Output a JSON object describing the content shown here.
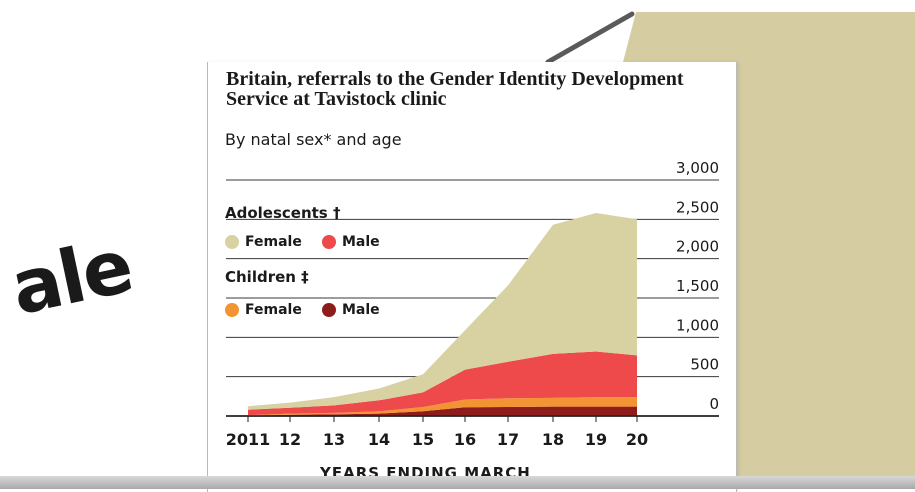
{
  "background_text": "ale",
  "chart_data": {
    "type": "area",
    "stacked": true,
    "title": "Britain, referrals to the Gender Identity Development Service at Tavistock clinic",
    "subtitle": "By natal sex* and age",
    "xlabel": "YEARS ENDING MARCH",
    "x": [
      "2011",
      "12",
      "13",
      "14",
      "15",
      "16",
      "17",
      "18",
      "19",
      "20"
    ],
    "ylim": [
      0,
      3000
    ],
    "yticks": [
      "3,000",
      "2,500",
      "2,000",
      "1,500",
      "1,000",
      "500",
      "0"
    ],
    "ytick_values": [
      3000,
      2500,
      2000,
      1500,
      1000,
      500,
      0
    ],
    "grid": true,
    "legend": {
      "groups": [
        {
          "title": "Adolescents †",
          "items": [
            "Female",
            "Male"
          ]
        },
        {
          "title": "Children ‡",
          "items": [
            "Female",
            "Male"
          ]
        }
      ]
    },
    "series": [
      {
        "group": "Children",
        "name": "Male",
        "color": "#8e1c1a",
        "values": [
          5,
          15,
          20,
          30,
          60,
          110,
          115,
          120,
          120,
          120
        ]
      },
      {
        "group": "Children",
        "name": "Female",
        "color": "#f39434",
        "values": [
          5,
          15,
          20,
          30,
          55,
          100,
          110,
          110,
          120,
          120
        ]
      },
      {
        "group": "Adolescents",
        "name": "Male",
        "color": "#ee4a4b",
        "values": [
          70,
          75,
          95,
          140,
          185,
          380,
          465,
          560,
          580,
          530
        ]
      },
      {
        "group": "Adolescents",
        "name": "Female",
        "color": "#d8d2a3",
        "values": [
          45,
          65,
          105,
          150,
          230,
          500,
          970,
          1640,
          1760,
          1730
        ]
      }
    ]
  }
}
